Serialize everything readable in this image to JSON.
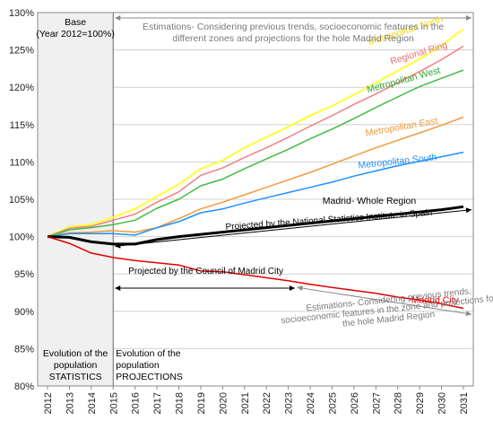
{
  "chart_data": {
    "type": "line",
    "x": [
      2012,
      2013,
      2014,
      2015,
      2016,
      2017,
      2018,
      2019,
      2020,
      2021,
      2022,
      2023,
      2024,
      2025,
      2026,
      2027,
      2028,
      2029,
      2030,
      2031
    ],
    "xlim": [
      2012,
      2031
    ],
    "ylim": [
      80,
      130
    ],
    "yticks": [
      80,
      85,
      90,
      95,
      100,
      105,
      110,
      115,
      120,
      125,
      130
    ],
    "ytick_labels": [
      "80%",
      "85%",
      "90%",
      "95%",
      "100%",
      "105%",
      "110%",
      "115%",
      "120%",
      "125%",
      "130%"
    ],
    "grid": "horizontal",
    "series": [
      {
        "name": "Metropolitan North",
        "color": "#ffff33",
        "width": 2,
        "values": [
          100,
          101.3,
          101.6,
          102.6,
          103.7,
          105.4,
          107.0,
          109.1,
          110.2,
          111.9,
          113.3,
          114.7,
          116.2,
          117.5,
          119.0,
          120.6,
          122.2,
          123.8,
          125.6,
          127.8
        ]
      },
      {
        "name": "Regional Ring",
        "color": "#f08080",
        "width": 1.5,
        "values": [
          100,
          101.1,
          101.4,
          102.2,
          103.0,
          104.6,
          106.0,
          108.2,
          109.2,
          110.6,
          111.9,
          113.3,
          114.8,
          116.2,
          117.7,
          119.1,
          120.6,
          122.1,
          123.7,
          125.5
        ]
      },
      {
        "name": "Metropolitan West",
        "color": "#44bb44",
        "width": 1.5,
        "values": [
          100,
          100.9,
          101.2,
          101.6,
          102.2,
          103.8,
          105.0,
          106.8,
          107.7,
          109.1,
          110.4,
          111.7,
          113.1,
          114.4,
          115.8,
          117.3,
          118.7,
          120.1,
          121.2,
          122.3
        ]
      },
      {
        "name": "Metropolitan East",
        "color": "#f39a3c",
        "width": 1.5,
        "values": [
          100,
          100.5,
          100.6,
          100.8,
          100.6,
          101.2,
          102.4,
          103.7,
          104.6,
          105.6,
          106.6,
          107.6,
          108.6,
          109.7,
          110.8,
          111.9,
          112.9,
          113.9,
          114.9,
          116.0
        ]
      },
      {
        "name": "Metropolitan South",
        "color": "#1e90ff",
        "width": 1.5,
        "values": [
          100,
          100.4,
          100.4,
          100.4,
          100.2,
          101.2,
          102.0,
          103.2,
          103.7,
          104.5,
          105.2,
          105.9,
          106.6,
          107.3,
          108.1,
          108.8,
          109.5,
          110.1,
          110.7,
          111.3
        ]
      },
      {
        "name": "Madrid- Whole Region",
        "color": "#000000",
        "width": 3,
        "values": [
          100,
          99.9,
          99.3,
          99.0,
          99.0,
          99.6,
          100.0,
          100.3,
          100.6,
          100.9,
          101.2,
          101.5,
          101.8,
          102.1,
          102.4,
          102.7,
          103.0,
          103.3,
          103.6,
          104.0
        ]
      },
      {
        "name": "Madrid City",
        "color": "#e00000",
        "width": 1.5,
        "values": [
          100,
          99.1,
          97.8,
          97.2,
          96.8,
          96.5,
          96.2,
          95.4,
          95.3,
          94.9,
          94.5,
          94.1,
          93.6,
          93.2,
          92.8,
          92.4,
          91.9,
          91.5,
          91.0,
          90.4
        ]
      }
    ],
    "series_labels": [
      {
        "text": "Metropolitan North",
        "color": "#f5d800",
        "at": [
          2028.4,
          127.2
        ],
        "angle": -18
      },
      {
        "text": "Regional Ring",
        "color": "#e57373",
        "at": [
          2029.0,
          124.2
        ],
        "angle": -17
      },
      {
        "text": "Metropolitan West",
        "color": "#2fa52f",
        "at": [
          2028.3,
          120.6
        ],
        "angle": -15
      },
      {
        "text": "Metropolitan East",
        "color": "#f39a3c",
        "at": [
          2028.2,
          114.3
        ],
        "angle": -10
      },
      {
        "text": "Metropolitan South",
        "color": "#1e90ff",
        "at": [
          2028.0,
          109.7
        ],
        "angle": -6
      },
      {
        "text": "Madrid- Whole Region",
        "color": "#000000",
        "at": [
          2026.7,
          104.4
        ],
        "angle": 0
      },
      {
        "text": "Madrid City",
        "color": "#e00000",
        "at": [
          2029.7,
          91.1
        ],
        "angle": 0
      }
    ],
    "base_box": {
      "x_range": [
        2012,
        2015
      ],
      "title": "Base",
      "subtitle": "(Year 2012=100%)",
      "bottom_text": [
        "Evolution of the",
        "population",
        "STATISTICS"
      ]
    },
    "projections_label": [
      "Evolution of the",
      "population",
      "PROJECTIONS"
    ],
    "annotations": {
      "top_estimation": [
        "Estimations- Considering previous trends, socioeconomic features in the",
        "different zones and projections for the hole Madrid Region"
      ],
      "ine_projection": "Projected by the National Statistics Institute in Spain",
      "council_projection": "Projected by the Council of Madrid City",
      "city_estimation": [
        "Estimations- Considering previous trends,",
        "socioeconomic features in the zone and projections for",
        "the hole Madrid Region"
      ]
    }
  }
}
